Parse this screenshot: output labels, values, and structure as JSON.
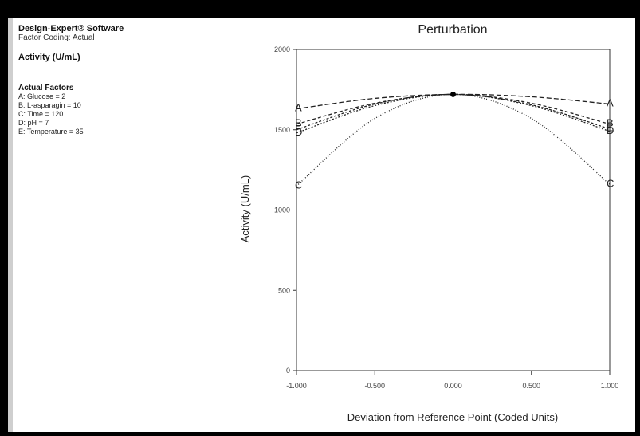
{
  "panel": {
    "software": "Design-Expert® Software",
    "coding": "Factor Coding: Actual",
    "response": "Activity (U/mL)",
    "actual_factors_title": "Actual Factors",
    "factors": [
      "A: Glucose = 2",
      "B: L-asparagin = 10",
      "C: Time = 120",
      "D: pH = 7",
      "E: Temperature = 35"
    ]
  },
  "colors": {
    "background": "#000000",
    "panel": "#ffffff",
    "line": "#222222"
  },
  "chart_data": {
    "type": "line",
    "title": "Perturbation",
    "xlabel": "Deviation from Reference Point (Coded Units)",
    "ylabel": "Activity (U/mL)",
    "xlim": [
      -1,
      1
    ],
    "ylim": [
      0,
      2000
    ],
    "x_ticks": [
      -1,
      -0.5,
      0,
      0.5,
      1
    ],
    "x_tick_labels": [
      "-1.000",
      "-0.500",
      "0.000",
      "0.500",
      "1.000"
    ],
    "y_ticks": [
      0,
      500,
      1000,
      1500,
      2000
    ],
    "y_tick_labels": [
      "0",
      "500",
      "1000",
      "1500",
      "2000"
    ],
    "reference_point": {
      "x": 0,
      "y": 1720
    },
    "series": [
      {
        "name": "A",
        "dash": "6,3",
        "x": [
          -1,
          -0.5,
          0,
          0.5,
          1
        ],
        "y": [
          1630,
          1695,
          1720,
          1705,
          1660
        ]
      },
      {
        "name": "B",
        "dash": "4,3",
        "x": [
          -1,
          -0.5,
          0,
          0.5,
          1
        ],
        "y": [
          1535,
          1665,
          1720,
          1665,
          1535
        ]
      },
      {
        "name": "D",
        "dash": "2,2",
        "x": [
          -1,
          -0.5,
          0,
          0.5,
          1
        ],
        "y": [
          1480,
          1650,
          1720,
          1650,
          1490
        ]
      },
      {
        "name": "E",
        "dash": "3,2",
        "x": [
          -1,
          -0.5,
          0,
          0.5,
          1
        ],
        "y": [
          1500,
          1660,
          1720,
          1655,
          1505
        ]
      },
      {
        "name": "C",
        "dash": "1,2",
        "x": [
          -1,
          -0.5,
          0,
          0.5,
          1
        ],
        "y": [
          1150,
          1570,
          1720,
          1570,
          1160
        ]
      }
    ]
  }
}
